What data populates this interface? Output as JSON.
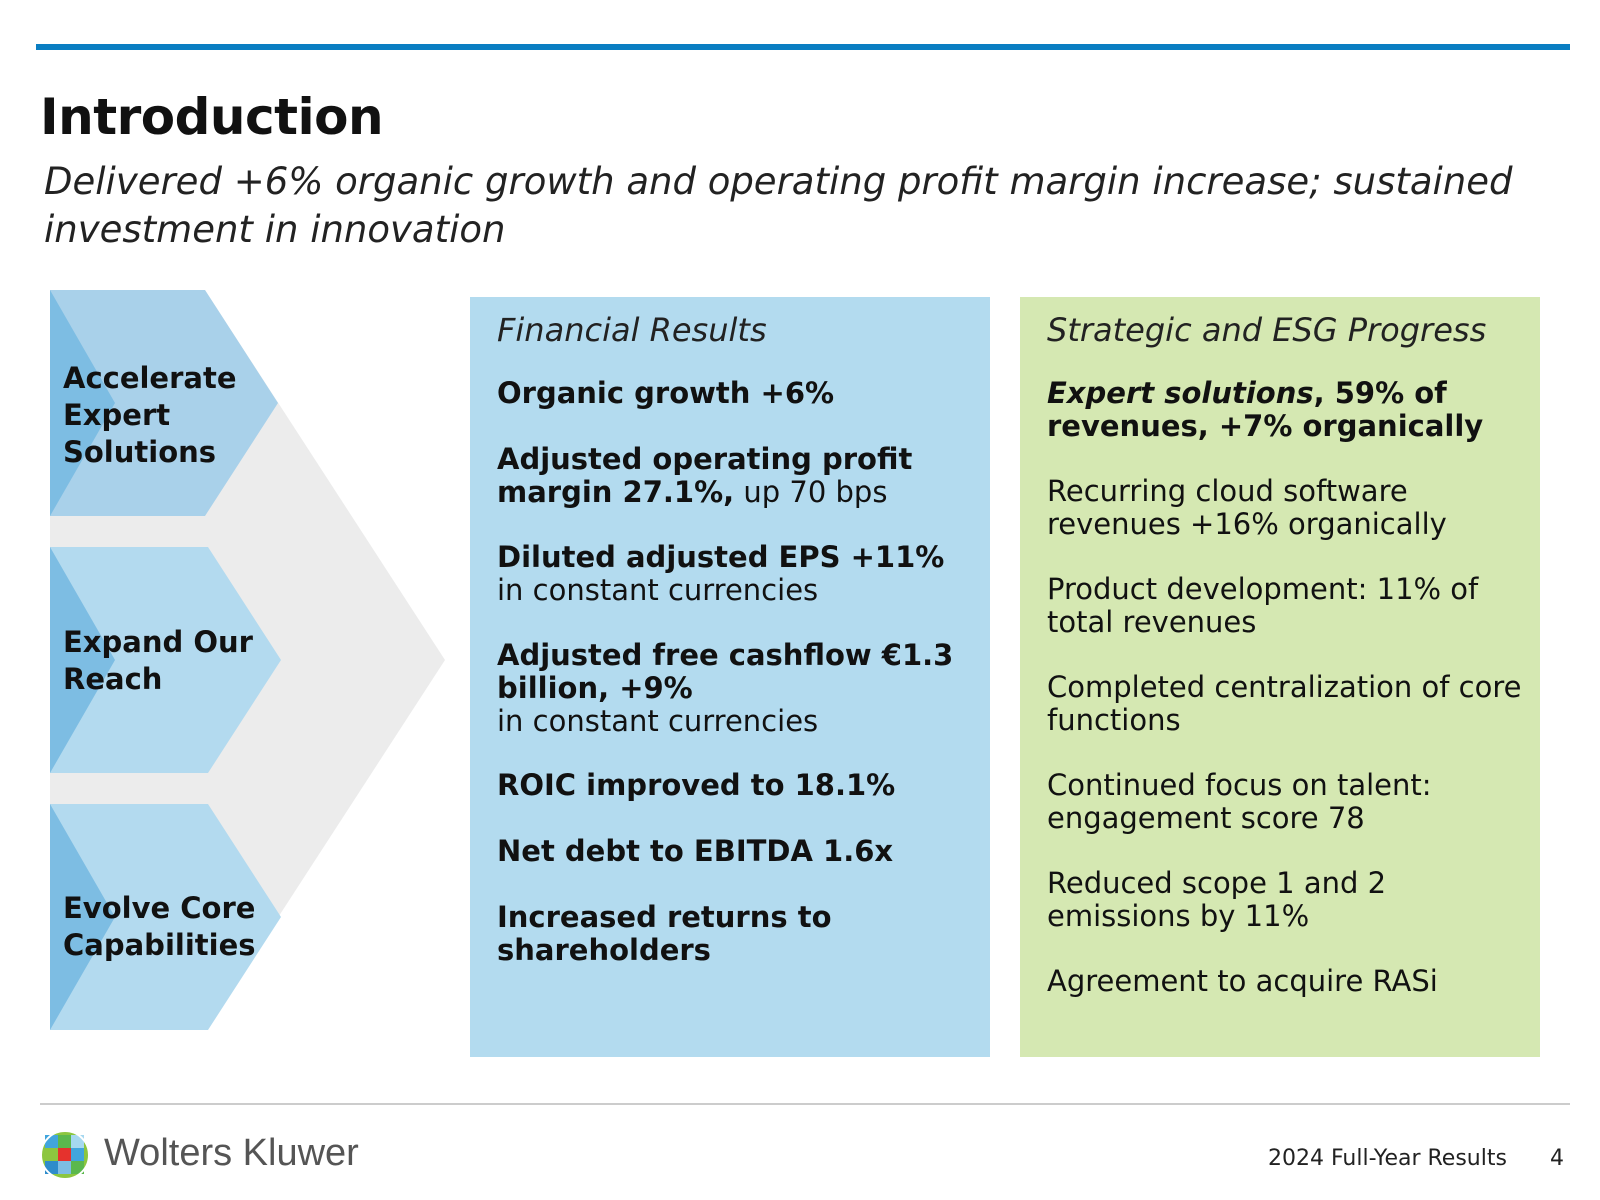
{
  "header": {
    "title": "Introduction",
    "subtitle": "Delivered +6% organic growth and operating profit margin increase; sustained investment in innovation"
  },
  "pillars": [
    {
      "label": "Accelerate Expert Solutions"
    },
    {
      "label": "Expand Our Reach"
    },
    {
      "label": "Evolve Core Capabilities"
    }
  ],
  "financial": {
    "heading": "Financial Results",
    "items": [
      {
        "bold": "Organic growth +6%",
        "normal": ""
      },
      {
        "bold": "Adjusted operating profit margin 27.1%,",
        "normal": " up 70 bps"
      },
      {
        "bold": "Diluted adjusted EPS +11%",
        "normal": "in constant currencies"
      },
      {
        "bold": "Adjusted free cashflow €1.3 billion, +9%",
        "normal": "in constant currencies"
      },
      {
        "bold": "ROIC improved to 18.1%",
        "normal": ""
      },
      {
        "bold": "Net debt to EBITDA 1.6x",
        "normal": ""
      },
      {
        "bold": "Increased returns to shareholders",
        "normal": ""
      }
    ]
  },
  "strategic": {
    "heading": "Strategic and ESG Progress",
    "first_italic": "Expert solutions",
    "first_rest": ", 59% of revenues, +7% organically",
    "items": [
      "Recurring cloud software revenues +16% organically",
      "Product development: 11% of total revenues",
      "Completed centralization of core functions",
      "Continued focus on talent: engagement score 78",
      "Reduced scope 1 and 2 emissions by 11%",
      "Agreement to acquire RASi"
    ]
  },
  "footer": {
    "company": "Wolters Kluwer",
    "report": "2024 Full-Year Results",
    "page": "4"
  },
  "colors": {
    "accent": "#0a7ec2",
    "financial_panel": "#b3dbef",
    "strategic_panel": "#d5e8b2"
  }
}
